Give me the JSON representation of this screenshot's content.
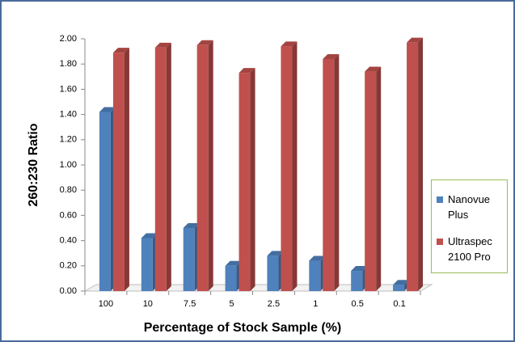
{
  "chart_data": {
    "type": "bar3d",
    "x_label": "Percentage of Stock Sample (%)",
    "y_label": "260:230 Ratio",
    "categories": [
      "100",
      "10",
      "7.5",
      "5",
      "2.5",
      "1",
      "0.5",
      "0.1"
    ],
    "series": [
      {
        "name": "Nanovue Plus",
        "color": "#4f81bd",
        "values": [
          1.42,
          0.42,
          0.5,
          0.2,
          0.28,
          0.24,
          0.16,
          0.05
        ]
      },
      {
        "name": "Ultraspec 2100 Pro",
        "color": "#c0504d",
        "values": [
          1.89,
          1.93,
          1.95,
          1.73,
          1.94,
          1.84,
          1.74,
          1.97
        ]
      }
    ],
    "ylim": [
      0,
      2
    ],
    "yticks": [
      {
        "value": 0,
        "label": "0.00"
      },
      {
        "value": 0.2,
        "label": "0.20"
      },
      {
        "value": 0.4,
        "label": "0.40"
      },
      {
        "value": 0.6,
        "label": "0.60"
      },
      {
        "value": 0.8,
        "label": "0.80"
      },
      {
        "value": 1,
        "label": "1.00"
      },
      {
        "value": 1.2,
        "label": "1.20"
      },
      {
        "value": 1.4,
        "label": "1.40"
      },
      {
        "value": 1.6,
        "label": "1.60"
      },
      {
        "value": 1.8,
        "label": "1.80"
      },
      {
        "value": 2,
        "label": "2.00"
      }
    ],
    "legend": "right"
  }
}
